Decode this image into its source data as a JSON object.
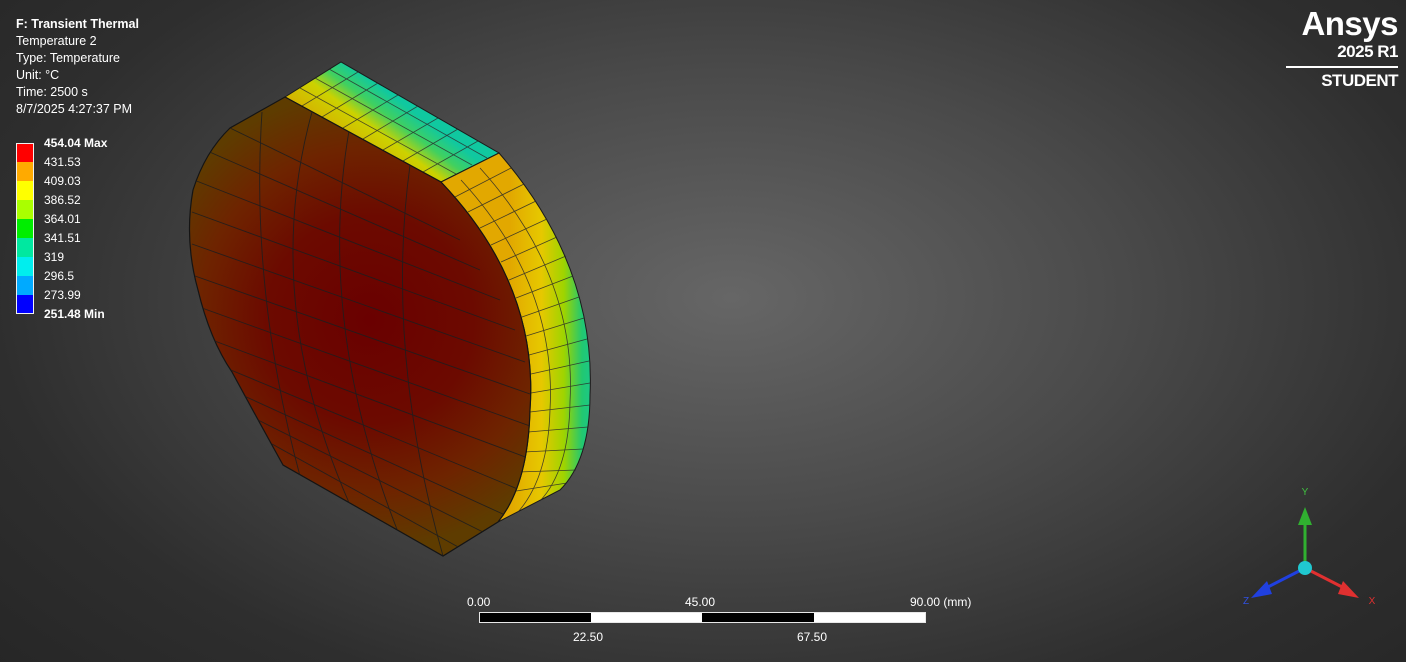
{
  "info": {
    "system": "F: Transient Thermal",
    "result": "Temperature 2",
    "type": "Type: Temperature",
    "unit": "Unit: °C",
    "time": "Time: 2500 s",
    "timestamp": "8/7/2025 4:27:37 PM"
  },
  "legend": {
    "entries": [
      {
        "label": "454.04 Max",
        "color": "#ff0000",
        "bold": true
      },
      {
        "label": "431.53",
        "color": "#ffaa00"
      },
      {
        "label": "409.03",
        "color": "#ffff00"
      },
      {
        "label": "386.52",
        "color": "#aaff00"
      },
      {
        "label": "364.01",
        "color": "#00ee00"
      },
      {
        "label": "341.51",
        "color": "#00e8a0"
      },
      {
        "label": "319",
        "color": "#00eeee"
      },
      {
        "label": "296.5",
        "color": "#00aaff"
      },
      {
        "label": "273.99",
        "color": "#0000ff"
      },
      {
        "label": "251.48 Min",
        "bold": true
      }
    ]
  },
  "brand": {
    "name": "Ansys",
    "version": "2025 R1",
    "edition": "STUDENT"
  },
  "scale": {
    "top_labels": [
      "0.00",
      "45.00",
      "90.00 (mm)"
    ],
    "bottom_labels": [
      "22.50",
      "67.50"
    ]
  },
  "triad": {
    "y_label": "Y",
    "x_label": "X",
    "z_label": "Z",
    "x_color": "#e03030",
    "y_color": "#30b030",
    "z_color": "#2040e0"
  }
}
